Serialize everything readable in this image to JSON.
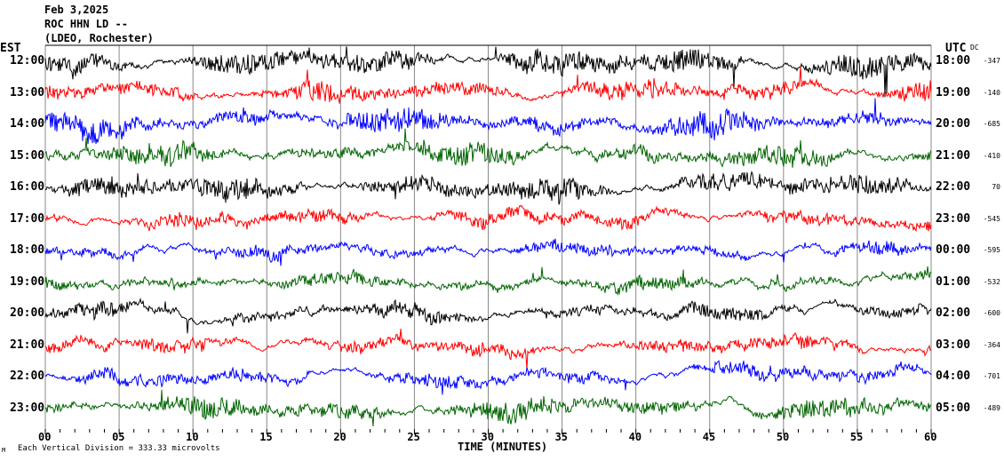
{
  "header": {
    "date": "Feb 3,2025",
    "station": "ROC HHN LD --",
    "location": "(LDEO, Rochester)"
  },
  "left_tz": "EST",
  "right_tz": "UTC",
  "dc_label": "DC",
  "footer": {
    "note": "Each Vertical Division =  333.33 microvolts",
    "corner_mark": "M"
  },
  "colors": {
    "trace_cycle": [
      "#000000",
      "#ff0000",
      "#0000ff",
      "#006400"
    ],
    "grid": "#888888"
  },
  "chart_data": {
    "type": "line",
    "title": "Feb 3,2025 ROC HHN LD -- (LDEO, Rochester)",
    "xlabel": "TIME (MINUTES)",
    "xlim": [
      0,
      60
    ],
    "x_ticks": [
      "00",
      "05",
      "10",
      "15",
      "20",
      "25",
      "30",
      "35",
      "40",
      "45",
      "50",
      "55",
      "60"
    ],
    "rows": [
      {
        "est": "12:00",
        "utc": "18:00",
        "dc": "-347",
        "activity": 0.9
      },
      {
        "est": "13:00",
        "utc": "19:00",
        "dc": "-140",
        "activity": 0.7
      },
      {
        "est": "14:00",
        "utc": "20:00",
        "dc": "-685",
        "activity": 0.8
      },
      {
        "est": "15:00",
        "utc": "21:00",
        "dc": "-410",
        "activity": 0.7
      },
      {
        "est": "16:00",
        "utc": "22:00",
        "dc": "70",
        "activity": 0.8
      },
      {
        "est": "17:00",
        "utc": "23:00",
        "dc": "-545",
        "activity": 0.5
      },
      {
        "est": "18:00",
        "utc": "00:00",
        "dc": "-595",
        "activity": 0.4
      },
      {
        "est": "19:00",
        "utc": "01:00",
        "dc": "-532",
        "activity": 0.45
      },
      {
        "est": "20:00",
        "utc": "02:00",
        "dc": "-600",
        "activity": 0.5
      },
      {
        "est": "21:00",
        "utc": "03:00",
        "dc": "-364",
        "activity": 0.5
      },
      {
        "est": "22:00",
        "utc": "04:00",
        "dc": "-701",
        "activity": 0.5
      },
      {
        "est": "23:00",
        "utc": "05:00",
        "dc": "-489",
        "activity": 0.7
      }
    ]
  }
}
